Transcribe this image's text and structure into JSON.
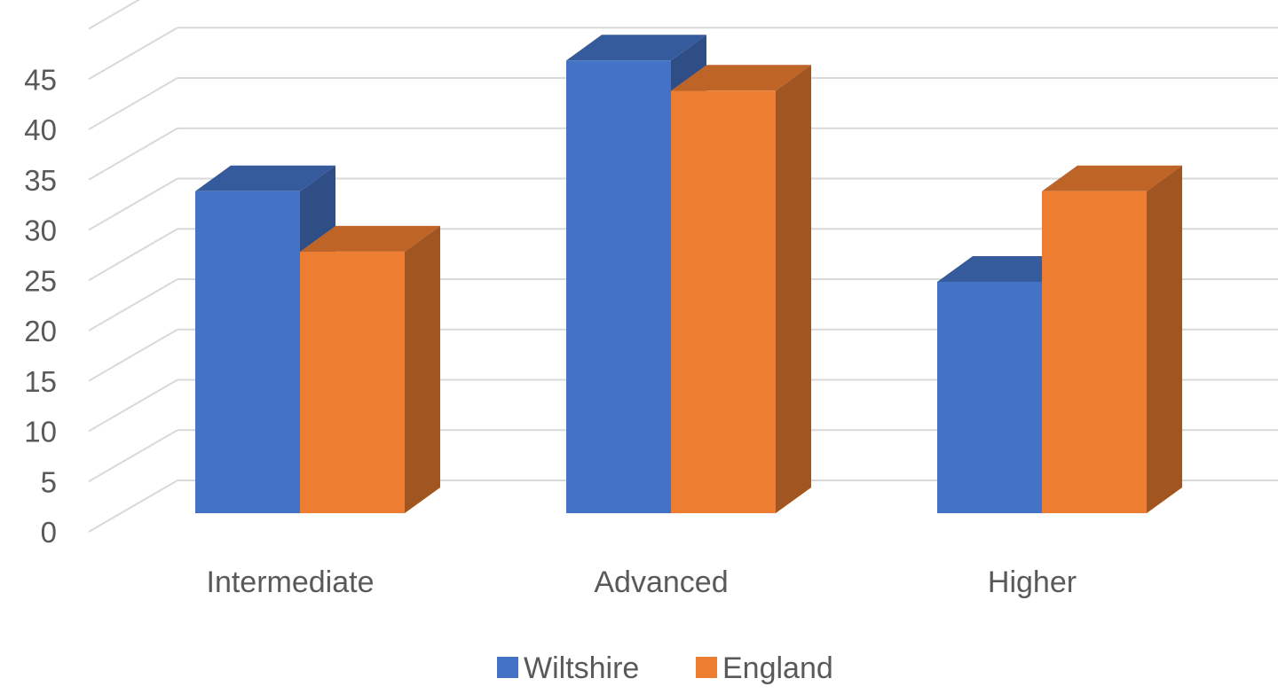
{
  "chart_data": {
    "type": "bar",
    "style": "3d-clustered-column",
    "categories": [
      "Intermediate",
      "Advanced",
      "Higher"
    ],
    "series": [
      {
        "name": "Wiltshire",
        "values": [
          32,
          45,
          23
        ],
        "color": "#4472C4"
      },
      {
        "name": "England",
        "values": [
          26,
          42,
          32
        ],
        "color": "#ED7D31"
      }
    ],
    "title": "",
    "xlabel": "",
    "ylabel": "",
    "ylim": [
      0,
      45
    ],
    "yticks": [
      0,
      5,
      10,
      15,
      20,
      25,
      30,
      35,
      40,
      45
    ],
    "grid": true,
    "legend": "bottom"
  }
}
